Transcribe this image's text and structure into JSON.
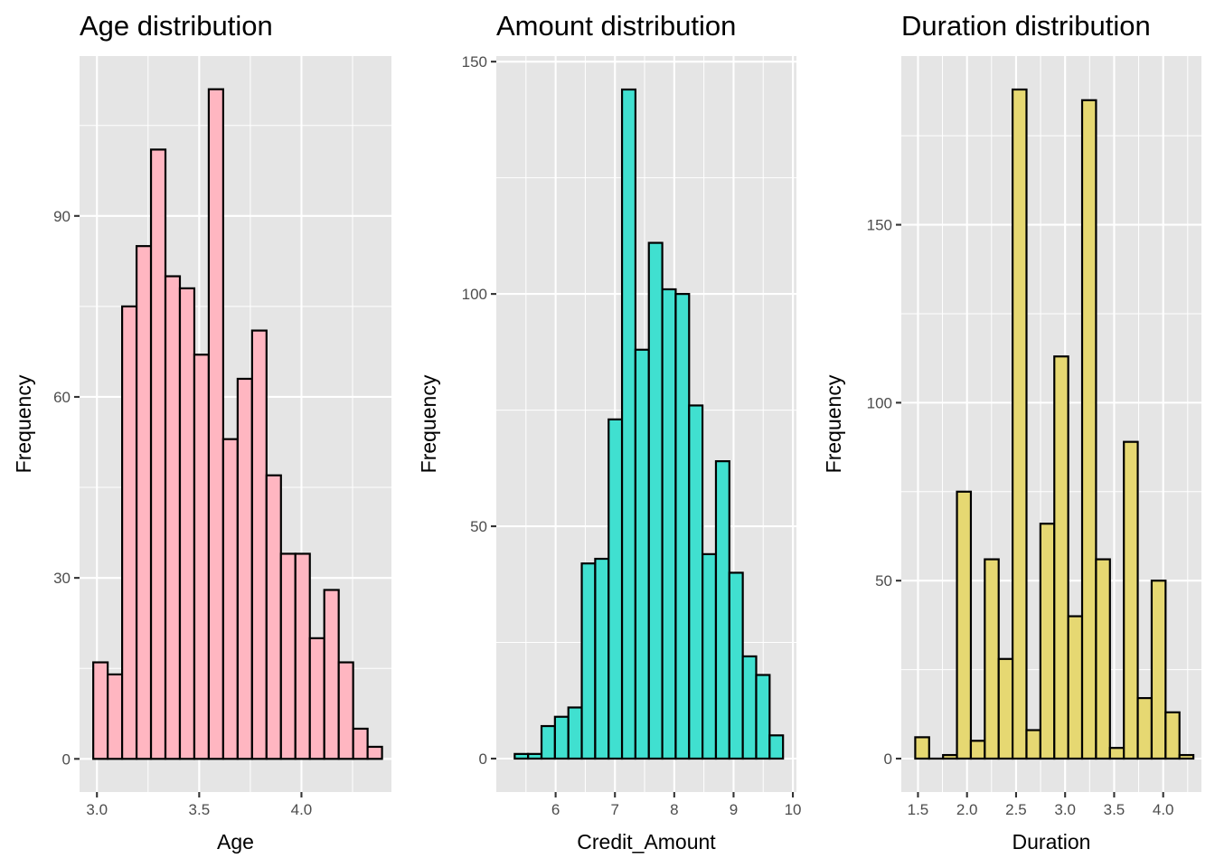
{
  "chart_data": [
    {
      "type": "bar",
      "subtype": "histogram",
      "title": "Age distribution",
      "xlabel": "Age",
      "ylabel": "Frequency",
      "fill_color": "#FFB6C1",
      "edge_color": "#000000",
      "bin_start": 2.982,
      "bin_width": 0.0706,
      "values": [
        16,
        14,
        75,
        85,
        101,
        80,
        78,
        67,
        111,
        53,
        63,
        71,
        47,
        34,
        34,
        20,
        28,
        16,
        5,
        2
      ],
      "xlim": [
        2.915,
        4.44
      ],
      "ylim": [
        -5.5,
        116.5
      ],
      "x_ticks": [
        3.0,
        3.5,
        4.0
      ],
      "x_tick_labels": [
        "3.0",
        "3.5",
        "4.0"
      ],
      "y_ticks": [
        0,
        30,
        60,
        90
      ],
      "y_tick_labels": [
        "0",
        "30",
        "60",
        "90"
      ],
      "grid": true
    },
    {
      "type": "bar",
      "subtype": "histogram",
      "title": "Amount distribution",
      "xlabel": "Credit_Amount",
      "ylabel": "Frequency",
      "fill_color": "#40E0D0",
      "edge_color": "#000000",
      "bin_start": 5.31,
      "bin_width": 0.2262,
      "values": [
        1,
        1,
        7,
        9,
        11,
        42,
        43,
        73,
        144,
        88,
        111,
        101,
        100,
        76,
        44,
        64,
        40,
        22,
        18,
        5
      ],
      "xlim": [
        5.0,
        10.06
      ],
      "ylim": [
        -7.2,
        151.2
      ],
      "x_ticks": [
        6,
        7,
        8,
        9,
        10
      ],
      "x_tick_labels": [
        "6",
        "7",
        "8",
        "9",
        "10"
      ],
      "y_ticks": [
        0,
        50,
        100,
        150
      ],
      "y_tick_labels": [
        "0",
        "50",
        "100",
        "150"
      ],
      "grid": true
    },
    {
      "type": "bar",
      "subtype": "histogram",
      "title": "Duration distribution",
      "xlabel": "Duration",
      "ylabel": "Frequency",
      "fill_color": "#E6D872",
      "edge_color": "#000000",
      "bin_start": 1.472,
      "bin_width": 0.1418,
      "values": [
        6,
        0,
        1,
        75,
        5,
        56,
        28,
        188,
        8,
        66,
        113,
        40,
        185,
        56,
        3,
        89,
        17,
        50,
        13,
        1
      ],
      "xlim": [
        1.33,
        4.39
      ],
      "ylim": [
        -9.4,
        197.4
      ],
      "x_ticks": [
        1.5,
        2.0,
        2.5,
        3.0,
        3.5,
        4.0
      ],
      "x_tick_labels": [
        "1.5",
        "2.0",
        "2.5",
        "3.0",
        "3.5",
        "4.0"
      ],
      "y_ticks": [
        0,
        50,
        100,
        150
      ],
      "y_tick_labels": [
        "0",
        "50",
        "100",
        "150"
      ],
      "grid": true
    }
  ]
}
